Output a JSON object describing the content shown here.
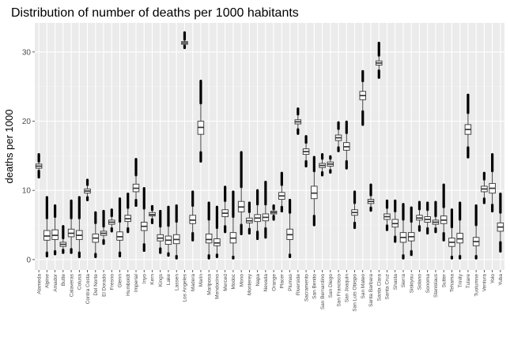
{
  "chart_data": {
    "type": "boxplot",
    "title": "Distribution of number of deaths per 1000 habitants",
    "xlabel": "",
    "ylabel": "deaths per 1000",
    "ylim": [
      -1.5,
      34.2
    ],
    "yticks": [
      0,
      10,
      20,
      30
    ],
    "grid": true,
    "legend": "none",
    "colors": {
      "panel": "#ebebeb",
      "grid_major": "#ffffff",
      "grid_minor": "#f4f4f4",
      "box_fill": "#ffffff",
      "box_line": "#333333",
      "outlier": "#000000"
    },
    "categories": [
      "Alameda",
      "Alpine",
      "Amador",
      "Butte",
      "Calaveras",
      "Colusa",
      "Contra Costa",
      "Del Norte",
      "El Dorado",
      "Fresno",
      "Glenn",
      "Humboldt",
      "Imperial",
      "Inyo",
      "Kern",
      "Kings",
      "Lake",
      "Lassen",
      "Los Angeles",
      "Madera",
      "Marin",
      "Mariposa",
      "Mendocino",
      "Merced",
      "Modoc",
      "Mono",
      "Monterey",
      "Napa",
      "Nevada",
      "Orange",
      "Placer",
      "Plumas",
      "Riverside",
      "Sacramento",
      "San Benito",
      "San Bernardino",
      "San Diego",
      "San Francisco",
      "San Joaquin",
      "San Luis Obispo",
      "San Mateo",
      "Santa Barbara",
      "Santa Clara",
      "Santa Cruz",
      "Shasta",
      "Sierra",
      "Siskiyou",
      "Solano",
      "Sonoma",
      "Stanislaus",
      "Sutter",
      "Tehama",
      "Trinity",
      "Tulare",
      "Tuolumne",
      "Ventura",
      "Yolo",
      "Yuba"
    ],
    "boxes": [
      {
        "lo": 12.8,
        "q1": 13.2,
        "med": 13.5,
        "q3": 13.8,
        "hi": 14.2,
        "olo": 11.9,
        "ohi": 15.2
      },
      {
        "lo": 1.0,
        "q1": 2.8,
        "med": 3.4,
        "q3": 4.2,
        "hi": 6.0,
        "olo": 0.5,
        "ohi": 9.0
      },
      {
        "lo": 1.2,
        "q1": 2.9,
        "med": 3.5,
        "q3": 4.3,
        "hi": 6.2,
        "olo": 0.8,
        "ohi": 7.8
      },
      {
        "lo": 1.4,
        "q1": 1.9,
        "med": 2.2,
        "q3": 2.5,
        "hi": 3.1,
        "olo": 1.0,
        "ohi": 4.8
      },
      {
        "lo": 1.5,
        "q1": 3.3,
        "med": 3.8,
        "q3": 4.4,
        "hi": 6.0,
        "olo": 1.0,
        "ohi": 8.5
      },
      {
        "lo": 1.0,
        "q1": 2.9,
        "med": 3.5,
        "q3": 4.2,
        "hi": 6.0,
        "olo": 0.4,
        "ohi": 9.0
      },
      {
        "lo": 9.0,
        "q1": 9.6,
        "med": 9.9,
        "q3": 10.2,
        "hi": 10.8,
        "olo": 8.6,
        "ohi": 11.5
      },
      {
        "lo": 0.8,
        "q1": 2.5,
        "med": 3.1,
        "q3": 3.7,
        "hi": 5.3,
        "olo": 0.4,
        "ohi": 6.8
      },
      {
        "lo": 2.8,
        "q1": 3.5,
        "med": 3.8,
        "q3": 4.1,
        "hi": 4.8,
        "olo": 2.3,
        "ohi": 7.0
      },
      {
        "lo": 4.5,
        "q1": 5.1,
        "med": 5.4,
        "q3": 5.7,
        "hi": 6.3,
        "olo": 4.1,
        "ohi": 7.2
      },
      {
        "lo": 1.0,
        "q1": 2.8,
        "med": 3.3,
        "q3": 4.0,
        "hi": 5.5,
        "olo": 0.5,
        "ohi": 8.8
      },
      {
        "lo": 4.5,
        "q1": 5.5,
        "med": 5.9,
        "q3": 6.4,
        "hi": 7.5,
        "olo": 4.0,
        "ohi": 9.5
      },
      {
        "lo": 8.6,
        "q1": 9.8,
        "med": 10.3,
        "q3": 10.9,
        "hi": 12.2,
        "olo": 7.8,
        "ohi": 14.5
      },
      {
        "lo": 2.2,
        "q1": 4.2,
        "med": 4.8,
        "q3": 5.4,
        "hi": 7.4,
        "olo": 1.3,
        "ohi": 10.3
      },
      {
        "lo": 5.8,
        "q1": 6.3,
        "med": 6.5,
        "q3": 6.8,
        "hi": 7.2,
        "olo": 5.3,
        "ohi": 7.7
      },
      {
        "lo": 1.6,
        "q1": 2.7,
        "med": 3.1,
        "q3": 3.6,
        "hi": 4.8,
        "olo": 1.0,
        "ohi": 7.0
      },
      {
        "lo": 0.9,
        "q1": 2.2,
        "med": 2.8,
        "q3": 3.4,
        "hi": 4.9,
        "olo": 0.6,
        "ohi": 7.6
      },
      {
        "lo": 0.5,
        "q1": 2.3,
        "med": 2.9,
        "q3": 3.6,
        "hi": 5.5,
        "olo": 0.2,
        "ohi": 7.8
      },
      {
        "lo": 30.9,
        "q1": 31.1,
        "med": 31.3,
        "q3": 31.5,
        "hi": 31.8,
        "olo": 30.6,
        "ohi": 32.8
      },
      {
        "lo": 3.8,
        "q1": 5.2,
        "med": 5.7,
        "q3": 6.4,
        "hi": 7.8,
        "olo": 2.8,
        "ohi": 9.8
      },
      {
        "lo": 15.5,
        "q1": 18.1,
        "med": 19.1,
        "q3": 20.0,
        "hi": 22.6,
        "olo": 14.2,
        "ohi": 25.8
      },
      {
        "lo": 0.6,
        "q1": 2.4,
        "med": 2.9,
        "q3": 3.7,
        "hi": 5.8,
        "olo": 0.2,
        "ohi": 8.2
      },
      {
        "lo": 0.7,
        "q1": 2.0,
        "med": 2.4,
        "q3": 3.0,
        "hi": 4.6,
        "olo": 0.4,
        "ohi": 7.6
      },
      {
        "lo": 4.8,
        "q1": 6.2,
        "med": 6.7,
        "q3": 7.2,
        "hi": 8.5,
        "olo": 4.0,
        "ohi": 10.5
      },
      {
        "lo": 0.4,
        "q1": 2.4,
        "med": 3.1,
        "q3": 3.9,
        "hi": 6.2,
        "olo": 0.2,
        "ohi": 9.8
      },
      {
        "lo": 5.0,
        "q1": 6.9,
        "med": 7.6,
        "q3": 8.4,
        "hi": 10.5,
        "olo": 3.7,
        "ohi": 15.5
      },
      {
        "lo": 4.4,
        "q1": 5.3,
        "med": 5.6,
        "q3": 6.0,
        "hi": 6.9,
        "olo": 3.8,
        "ohi": 8.2
      },
      {
        "lo": 4.0,
        "q1": 5.5,
        "med": 6.0,
        "q3": 6.5,
        "hi": 8.0,
        "olo": 3.0,
        "ohi": 10.0
      },
      {
        "lo": 4.5,
        "q1": 5.6,
        "med": 6.1,
        "q3": 6.6,
        "hi": 8.0,
        "olo": 3.2,
        "ohi": 11.2
      },
      {
        "lo": 6.3,
        "q1": 6.6,
        "med": 6.8,
        "q3": 7.0,
        "hi": 7.3,
        "olo": 5.8,
        "ohi": 7.8
      },
      {
        "lo": 7.6,
        "q1": 8.7,
        "med": 9.2,
        "q3": 9.7,
        "hi": 10.8,
        "olo": 7.0,
        "ohi": 12.5
      },
      {
        "lo": 0.7,
        "q1": 2.9,
        "med": 3.6,
        "q3": 4.4,
        "hi": 6.8,
        "olo": 0.4,
        "ohi": 8.6
      },
      {
        "lo": 18.8,
        "q1": 19.6,
        "med": 19.9,
        "q3": 20.2,
        "hi": 21.0,
        "olo": 18.2,
        "ohi": 21.8
      },
      {
        "lo": 14.2,
        "q1": 15.2,
        "med": 15.6,
        "q3": 16.0,
        "hi": 16.9,
        "olo": 13.5,
        "ohi": 17.8
      },
      {
        "lo": 6.3,
        "q1": 8.8,
        "med": 9.6,
        "q3": 10.6,
        "hi": 12.8,
        "olo": 5.0,
        "ohi": 14.8
      },
      {
        "lo": 12.6,
        "q1": 13.3,
        "med": 13.6,
        "q3": 13.9,
        "hi": 14.6,
        "olo": 12.2,
        "ohi": 15.2
      },
      {
        "lo": 12.9,
        "q1": 13.5,
        "med": 13.8,
        "q3": 14.1,
        "hi": 14.6,
        "olo": 12.6,
        "ohi": 14.9
      },
      {
        "lo": 16.2,
        "q1": 17.2,
        "med": 17.6,
        "q3": 18.0,
        "hi": 18.9,
        "olo": 15.7,
        "ohi": 19.8
      },
      {
        "lo": 14.2,
        "q1": 15.8,
        "med": 16.3,
        "q3": 16.9,
        "hi": 18.3,
        "olo": 13.2,
        "ohi": 19.9
      },
      {
        "lo": 5.3,
        "q1": 6.4,
        "med": 6.8,
        "q3": 7.2,
        "hi": 8.2,
        "olo": 4.6,
        "ohi": 9.8
      },
      {
        "lo": 21.4,
        "q1": 23.1,
        "med": 23.7,
        "q3": 24.3,
        "hi": 25.8,
        "olo": 19.5,
        "ohi": 27.2
      },
      {
        "lo": 7.5,
        "q1": 8.1,
        "med": 8.4,
        "q3": 8.7,
        "hi": 9.3,
        "olo": 7.1,
        "ohi": 10.8
      },
      {
        "lo": 27.3,
        "q1": 28.1,
        "med": 28.4,
        "q3": 28.7,
        "hi": 29.5,
        "olo": 26.3,
        "ohi": 31.3
      },
      {
        "lo": 4.9,
        "q1": 5.8,
        "med": 6.2,
        "q3": 6.6,
        "hi": 7.5,
        "olo": 4.3,
        "ohi": 8.5
      },
      {
        "lo": 3.3,
        "q1": 4.7,
        "med": 5.2,
        "q3": 5.8,
        "hi": 7.0,
        "olo": 2.6,
        "ohi": 8.5
      },
      {
        "lo": 0.6,
        "q1": 2.5,
        "med": 3.2,
        "q3": 3.9,
        "hi": 5.8,
        "olo": 0.2,
        "ohi": 8.0
      },
      {
        "lo": 1.2,
        "q1": 2.7,
        "med": 3.3,
        "q3": 3.9,
        "hi": 5.5,
        "olo": 0.7,
        "ohi": 7.5
      },
      {
        "lo": 4.8,
        "q1": 5.7,
        "med": 6.0,
        "q3": 6.4,
        "hi": 7.3,
        "olo": 4.2,
        "ohi": 8.3
      },
      {
        "lo": 4.5,
        "q1": 5.4,
        "med": 5.8,
        "q3": 6.2,
        "hi": 7.2,
        "olo": 3.8,
        "ohi": 8.2
      },
      {
        "lo": 4.5,
        "q1": 5.1,
        "med": 5.4,
        "q3": 5.7,
        "hi": 6.3,
        "olo": 4.0,
        "ohi": 8.3
      },
      {
        "lo": 3.8,
        "q1": 5.2,
        "med": 5.7,
        "q3": 6.3,
        "hi": 7.6,
        "olo": 2.8,
        "ohi": 10.8
      },
      {
        "lo": 0.4,
        "q1": 1.9,
        "med": 2.5,
        "q3": 3.1,
        "hi": 4.7,
        "olo": 0.2,
        "ohi": 7.2
      },
      {
        "lo": 0.5,
        "q1": 2.4,
        "med": 3.0,
        "q3": 3.8,
        "hi": 5.8,
        "olo": 0.2,
        "ohi": 8.2
      },
      {
        "lo": 16.2,
        "q1": 18.1,
        "med": 18.8,
        "q3": 19.5,
        "hi": 21.2,
        "olo": 14.8,
        "ohi": 23.8
      },
      {
        "lo": 0.5,
        "q1": 2.0,
        "med": 2.6,
        "q3": 3.2,
        "hi": 5.0,
        "olo": 0.2,
        "ohi": 7.8
      },
      {
        "lo": 8.8,
        "q1": 9.8,
        "med": 10.2,
        "q3": 10.6,
        "hi": 11.6,
        "olo": 8.2,
        "ohi": 12.5
      },
      {
        "lo": 7.9,
        "q1": 9.6,
        "med": 10.3,
        "q3": 11.0,
        "hi": 12.8,
        "olo": 7.0,
        "ohi": 15.2
      },
      {
        "lo": 2.5,
        "q1": 4.1,
        "med": 4.7,
        "q3": 5.3,
        "hi": 6.8,
        "olo": 1.2,
        "ohi": 9.5
      }
    ]
  }
}
